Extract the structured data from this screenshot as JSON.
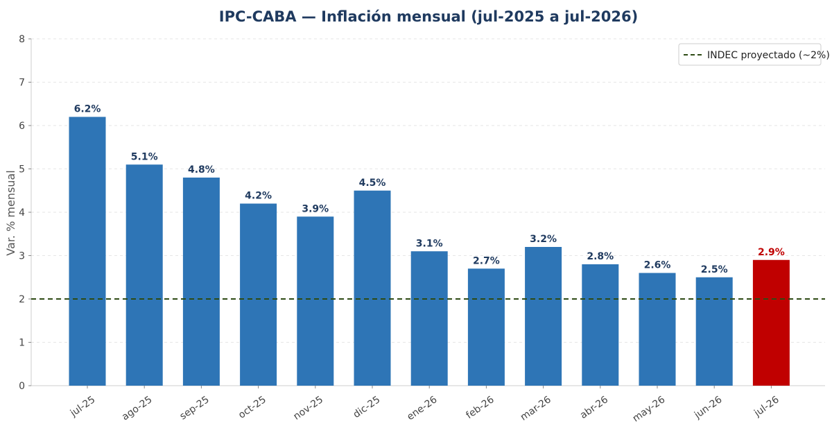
{
  "chart_data": {
    "type": "bar",
    "title": "IPC-CABA — Inflación mensual (jul-2025 a jul-2026)",
    "xlabel": "",
    "ylabel": "Var. % mensual",
    "ylim": [
      0,
      8
    ],
    "yticks": [
      0,
      1,
      2,
      3,
      4,
      5,
      6,
      7,
      8
    ],
    "categories": [
      "jul-25",
      "ago-25",
      "sep-25",
      "oct-25",
      "nov-25",
      "dic-25",
      "ene-26",
      "feb-26",
      "mar-26",
      "abr-26",
      "may-26",
      "jun-26",
      "jul-26"
    ],
    "values": [
      6.2,
      5.1,
      4.8,
      4.2,
      3.9,
      4.5,
      3.1,
      2.7,
      3.2,
      2.8,
      2.6,
      2.5,
      2.9
    ],
    "data_labels": [
      "6.2%",
      "5.1%",
      "4.8%",
      "4.2%",
      "3.9%",
      "4.5%",
      "3.1%",
      "2.7%",
      "3.2%",
      "2.8%",
      "2.6%",
      "2.5%",
      "2.9%"
    ],
    "highlight_index": 12,
    "bar_color": "#2e75b6",
    "highlight_color": "#c00000",
    "label_color": "#1f3a5f",
    "highlight_label_color": "#c00000",
    "reference_line": {
      "value": 2,
      "label": "INDEC proyectado (~2%)",
      "color": "#2d4a14",
      "style": "dashed"
    },
    "legend_placement": "top-right",
    "grid": true,
    "grid_axis": "y"
  }
}
